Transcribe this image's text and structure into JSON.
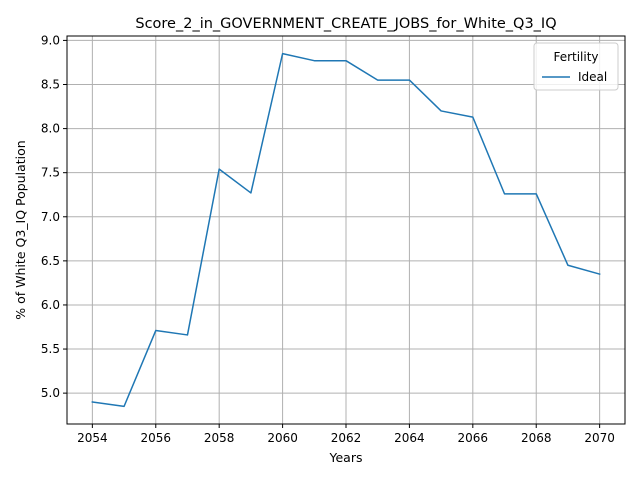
{
  "chart_data": {
    "type": "line",
    "title": "Score_2_in_GOVERNMENT_CREATE_JOBS_for_White_Q3_IQ",
    "xlabel": "Years",
    "ylabel": "% of White Q3_IQ Population",
    "xlim": [
      2053.2,
      2070.8
    ],
    "ylim": [
      4.65,
      9.05
    ],
    "xticks": [
      2054,
      2056,
      2058,
      2060,
      2062,
      2064,
      2066,
      2068,
      2070
    ],
    "yticks": [
      5.0,
      5.5,
      6.0,
      6.5,
      7.0,
      7.5,
      8.0,
      8.5,
      9.0
    ],
    "grid": true,
    "legend": {
      "title": "Fertility",
      "placement": "top-right"
    },
    "series": [
      {
        "name": "Ideal",
        "color": "#1f77b4",
        "x": [
          2054,
          2055,
          2056,
          2057,
          2058,
          2059,
          2060,
          2061,
          2062,
          2063,
          2064,
          2065,
          2066,
          2067,
          2068,
          2069,
          2070
        ],
        "y": [
          4.9,
          4.85,
          5.71,
          5.66,
          7.54,
          7.27,
          8.85,
          8.77,
          8.77,
          8.55,
          8.55,
          8.2,
          8.13,
          7.26,
          7.26,
          6.45,
          6.35
        ]
      }
    ]
  }
}
